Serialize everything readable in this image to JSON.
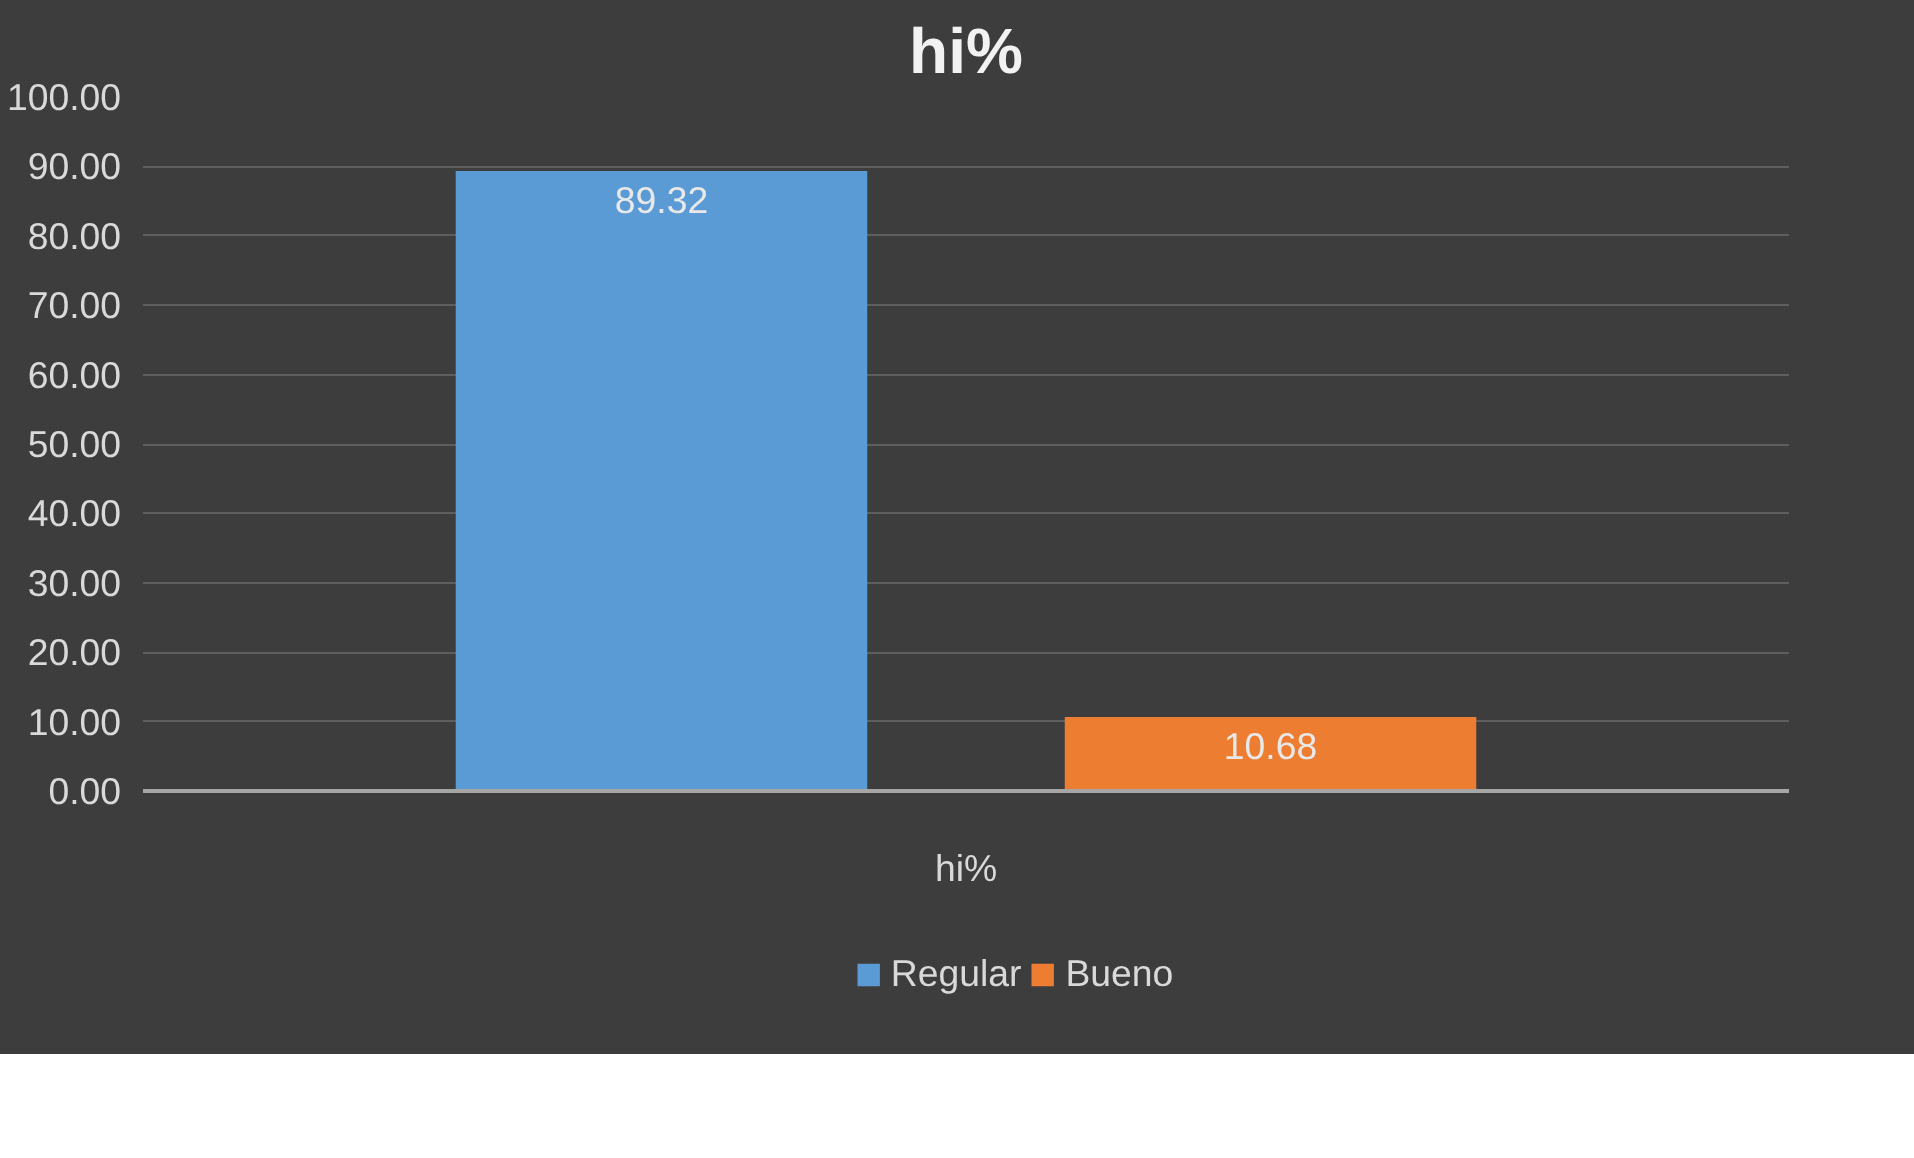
{
  "chart_data": {
    "type": "bar",
    "title": "hi%",
    "categories": [
      "hi%"
    ],
    "series": [
      {
        "name": "Regular",
        "color": "#5b9bd5",
        "values": [
          89.32
        ]
      },
      {
        "name": "Bueno",
        "color": "#ed7d31",
        "values": [
          10.68
        ]
      }
    ],
    "ylim": [
      0,
      100
    ],
    "yticks": [
      {
        "value": 0,
        "label": "0.00"
      },
      {
        "value": 10,
        "label": "10.00"
      },
      {
        "value": 20,
        "label": "20.00"
      },
      {
        "value": 30,
        "label": "30.00"
      },
      {
        "value": 40,
        "label": "40.00"
      },
      {
        "value": 50,
        "label": "50.00"
      },
      {
        "value": 60,
        "label": "60.00"
      },
      {
        "value": 70,
        "label": "70.00"
      },
      {
        "value": 80,
        "label": "80.00"
      },
      {
        "value": 90,
        "label": "90.00"
      },
      {
        "value": 100,
        "label": "100.00"
      }
    ],
    "data_labels": true,
    "grid": "y",
    "legend": "bottom"
  }
}
